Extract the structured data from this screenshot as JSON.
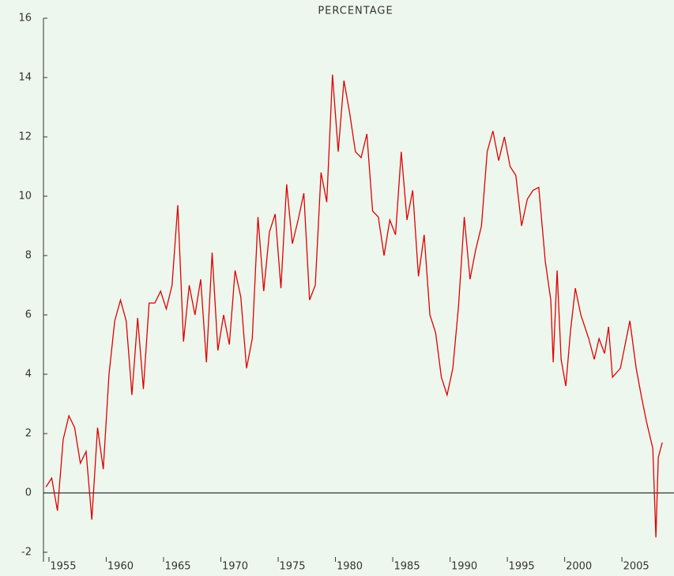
{
  "chart_data": {
    "type": "line",
    "title": "PERCENTAGE",
    "x": [
      1953.5,
      1954,
      1954.5,
      1955,
      1955.5,
      1956,
      1956.5,
      1957,
      1957.5,
      1958,
      1958.5,
      1959,
      1959.5,
      1960,
      1960.5,
      1961,
      1961.5,
      1962,
      1962.5,
      1963,
      1963.5,
      1964,
      1964.5,
      1965,
      1965.5,
      1966,
      1966.5,
      1967,
      1967.5,
      1968,
      1968.5,
      1969,
      1969.5,
      1970,
      1970.5,
      1971,
      1971.5,
      1972,
      1972.5,
      1973,
      1973.5,
      1974,
      1974.5,
      1975,
      1975.5,
      1976,
      1976.5,
      1977,
      1977.5,
      1978,
      1978.5,
      1979,
      1979.5,
      1980,
      1980.5,
      1981,
      1981.5,
      1982,
      1982.5,
      1983,
      1983.5,
      1984,
      1984.5,
      1985,
      1985.5,
      1986,
      1986.5,
      1987,
      1987.5,
      1988,
      1988.5,
      1989,
      1989.5,
      1990,
      1990.5,
      1991,
      1991.5,
      1992,
      1992.5,
      1993,
      1993.5,
      1994,
      1994.5,
      1995,
      1995.5,
      1996,
      1996.5,
      1997.07,
      1997.55,
      1997.76,
      1998.1,
      1998.45,
      1998.86,
      1999.28,
      1999.69,
      2000.17,
      2000.86,
      2001.34,
      2001.76,
      2002.24,
      2002.59,
      2002.93,
      2003.62,
      2004.45,
      2005.0,
      2005.48,
      2005.9,
      2006.45,
      2006.72,
      2006.93,
      2007.28
    ],
    "series": [
      {
        "name": "PERCENTAGE",
        "color": "#e00000",
        "values": [
          0.2,
          0.5,
          -0.6,
          1.8,
          2.6,
          2.2,
          1.0,
          1.4,
          -0.9,
          2.2,
          0.8,
          4.0,
          5.8,
          6.5,
          5.8,
          3.3,
          5.9,
          3.5,
          6.4,
          6.4,
          6.8,
          6.2,
          7.0,
          9.7,
          5.1,
          7.0,
          6.0,
          7.2,
          4.4,
          8.1,
          4.8,
          6.0,
          5.0,
          7.5,
          6.6,
          4.2,
          5.2,
          9.3,
          6.8,
          8.8,
          9.4,
          6.9,
          10.4,
          8.4,
          9.2,
          10.1,
          6.5,
          7.0,
          10.8,
          9.8,
          14.1,
          11.5,
          13.9,
          12.8,
          11.5,
          11.3,
          12.1,
          9.5,
          9.3,
          8.0,
          9.2,
          8.7,
          11.5,
          9.2,
          10.2,
          7.3,
          8.7,
          6.0,
          5.4,
          3.9,
          3.3,
          4.2,
          6.3,
          9.3,
          7.2,
          8.2,
          9.0,
          11.5,
          12.2,
          11.2,
          12.0,
          11.0,
          10.7,
          9.0,
          9.9,
          10.2,
          10.3,
          7.8,
          6.5,
          4.4,
          7.5,
          4.5,
          3.6,
          5.5,
          6.9,
          6.0,
          5.2,
          4.5,
          5.2,
          4.7,
          5.6,
          3.9,
          4.2,
          5.8,
          4.2,
          3.2,
          2.4,
          1.5,
          -1.5,
          1.2,
          1.7
        ]
      }
    ],
    "xlim": [
      1953.28,
      2008.3
    ],
    "xticks": [
      1955,
      1960,
      1965,
      1970,
      1975,
      1980,
      1985,
      1990,
      1995,
      2000,
      2005
    ],
    "ylim": [
      -2,
      16
    ],
    "yticks": [
      -2,
      0,
      2,
      4,
      6,
      8,
      10,
      12,
      14,
      16
    ]
  }
}
